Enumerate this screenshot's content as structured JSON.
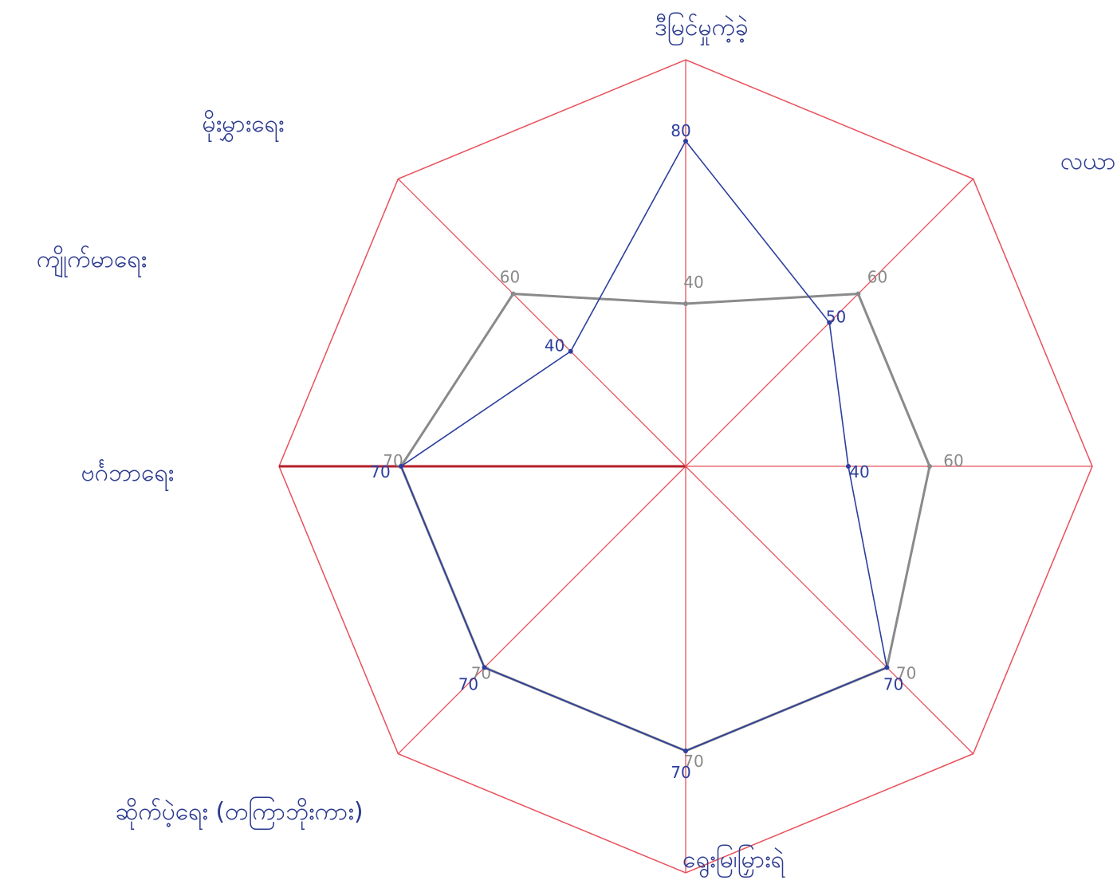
{
  "chart_data": {
    "type": "radar",
    "title": "",
    "axes": [
      "ဒီမြင်မှုကဲ့ခဲ့",
      "လယာ",
      "",
      "ရွေးမြ၊မြှားရဲ",
      "ဆိုက်ပဲ့ရေး (တကြာဘိုးကား)",
      "ဗင်္ဂဘာရေး",
      "ကျိုက်မာရေး",
      "မိုးမွှားရေး"
    ],
    "rmax": 100,
    "series": [
      {
        "name": "",
        "color": "#8a8a8a",
        "values": [
          40,
          60,
          60,
          70,
          70,
          70,
          70,
          60
        ],
        "labels": [
          "40",
          "60",
          "60",
          "70",
          "70",
          "70",
          "70",
          "60"
        ]
      },
      {
        "name": "",
        "color": "#2c3e9e",
        "values": [
          80,
          50,
          40,
          70,
          70,
          70,
          70,
          40
        ],
        "labels": [
          "80",
          "50",
          "40",
          "70",
          "70",
          "70",
          "70",
          "40"
        ]
      }
    ],
    "colors": {
      "grid": "#e8505b",
      "grid_dark": "#b3202b"
    },
    "grid": true,
    "legend": "none"
  }
}
